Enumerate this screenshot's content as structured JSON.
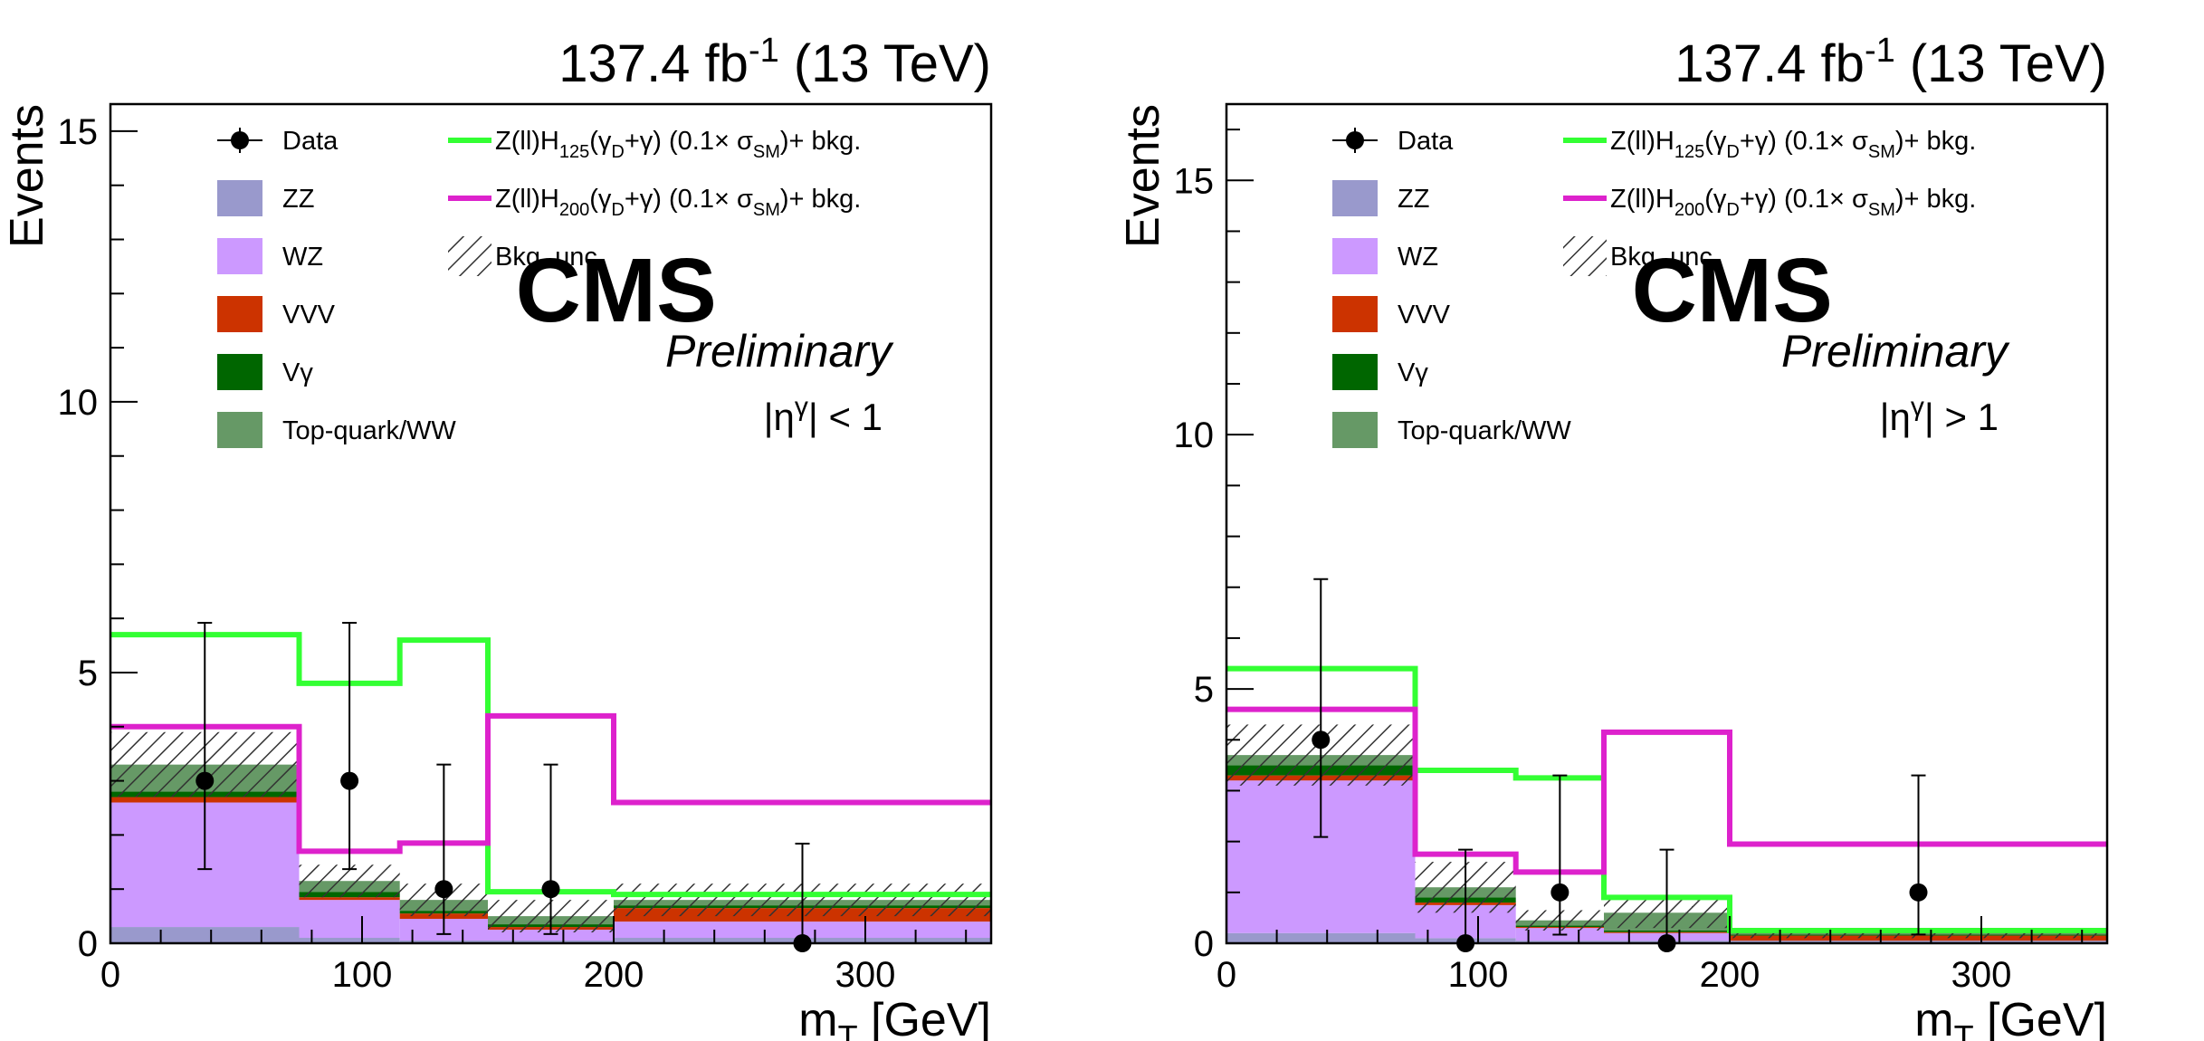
{
  "chart_data": [
    {
      "type": "bar",
      "stacked": true,
      "header_lumi": "137.4 fb",
      "header_lumi_exp": "-1",
      "header_energy": " (13 TeV)",
      "experiment": "CMS",
      "experiment_status": "Preliminary",
      "region_label_main": "|η",
      "region_label_sup": "γ",
      "region_label_tail": "| < 1",
      "xlabel_main": "m",
      "xlabel_sub": "T",
      "xlabel_unit": " [GeV]",
      "ylabel": "Events",
      "xlim": [
        0,
        350
      ],
      "ylim": [
        0,
        15.5
      ],
      "x_ticks": [
        0,
        100,
        200,
        300
      ],
      "y_ticks": [
        0,
        5,
        10,
        15
      ],
      "bin_edges": [
        0,
        75,
        115,
        150,
        200,
        350
      ],
      "stack": [
        {
          "name": "ZZ",
          "color": "#9999cc",
          "values": [
            0.3,
            0.1,
            0.05,
            0.05,
            0.1
          ]
        },
        {
          "name": "WZ",
          "color": "#cc99ff",
          "values": [
            2.3,
            0.7,
            0.4,
            0.2,
            0.3
          ]
        },
        {
          "name": "VVV",
          "color": "#cc3300",
          "values": [
            0.1,
            0.05,
            0.1,
            0.05,
            0.25
          ]
        },
        {
          "name": "Vγ",
          "color": "#006600",
          "values": [
            0.1,
            0.1,
            0.05,
            0.05,
            0.05
          ]
        },
        {
          "name": "Top-quark/WW",
          "color": "#669966",
          "values": [
            0.5,
            0.2,
            0.2,
            0.15,
            0.1
          ]
        }
      ],
      "bkg_unc": [
        0.6,
        0.3,
        0.3,
        0.3,
        0.3
      ],
      "signals": [
        {
          "name_main": "Z(ll)H",
          "name_sub": "125",
          "name_tail": "(γ",
          "name_sub2": "D",
          "name_tail2": "+γ) (0.1× σ",
          "name_sub3": "SM",
          "name_tail3": ")+ bkg.",
          "color": "#33ff33",
          "values": [
            5.7,
            4.8,
            5.6,
            0.95,
            0.9
          ]
        },
        {
          "name_main": "Z(ll)H",
          "name_sub": "200",
          "name_tail": "(γ",
          "name_sub2": "D",
          "name_tail2": "+γ) (0.1× σ",
          "name_sub3": "SM",
          "name_tail3": ")+ bkg.",
          "color": "#dd22cc",
          "values": [
            4.0,
            1.7,
            1.85,
            4.2,
            2.6
          ]
        }
      ],
      "data": {
        "label": "Data",
        "x": [
          37.5,
          95,
          132.5,
          175,
          275
        ],
        "y": [
          3,
          3,
          1,
          1,
          0
        ],
        "err_low": [
          1.63,
          1.63,
          0.83,
          0.83,
          0
        ],
        "err_high": [
          2.92,
          2.92,
          2.3,
          2.3,
          1.84
        ]
      },
      "legend_unc": "Bkg. unc."
    },
    {
      "type": "bar",
      "stacked": true,
      "header_lumi": "137.4 fb",
      "header_lumi_exp": "-1",
      "header_energy": " (13 TeV)",
      "experiment": "CMS",
      "experiment_status": "Preliminary",
      "region_label_main": "|η",
      "region_label_sup": "γ",
      "region_label_tail": "| > 1",
      "xlabel_main": "m",
      "xlabel_sub": "T",
      "xlabel_unit": " [GeV]",
      "ylabel": "Events",
      "xlim": [
        0,
        350
      ],
      "ylim": [
        0,
        16.5
      ],
      "x_ticks": [
        0,
        100,
        200,
        300
      ],
      "y_ticks": [
        0,
        5,
        10,
        15
      ],
      "bin_edges": [
        0,
        75,
        115,
        150,
        200,
        350
      ],
      "stack": [
        {
          "name": "ZZ",
          "color": "#9999cc",
          "values": [
            0.2,
            0.1,
            0.05,
            0.05,
            0.05
          ]
        },
        {
          "name": "WZ",
          "color": "#cc99ff",
          "values": [
            3.0,
            0.65,
            0.25,
            0.15,
            0.0
          ]
        },
        {
          "name": "VVV",
          "color": "#cc3300",
          "values": [
            0.1,
            0.05,
            0.02,
            0.02,
            0.1
          ]
        },
        {
          "name": "Vγ",
          "color": "#006600",
          "values": [
            0.2,
            0.1,
            0.03,
            0.03,
            0.02
          ]
        },
        {
          "name": "Top-quark/WW",
          "color": "#669966",
          "values": [
            0.2,
            0.2,
            0.1,
            0.35,
            0.03
          ]
        }
      ],
      "bkg_unc": [
        0.6,
        0.5,
        0.2,
        0.3,
        0.1
      ],
      "signals": [
        {
          "name_main": "Z(ll)H",
          "name_sub": "125",
          "name_tail": "(γ",
          "name_sub2": "D",
          "name_tail2": "+γ) (0.1× σ",
          "name_sub3": "SM",
          "name_tail3": ")+ bkg.",
          "color": "#33ff33",
          "values": [
            5.4,
            3.4,
            3.25,
            0.9,
            0.25
          ]
        },
        {
          "name_main": "Z(ll)H",
          "name_sub": "200",
          "name_tail": "(γ",
          "name_sub2": "D",
          "name_tail2": "+γ) (0.1× σ",
          "name_sub3": "SM",
          "name_tail3": ")+ bkg.",
          "color": "#dd22cc",
          "values": [
            4.6,
            1.75,
            1.4,
            4.15,
            1.95
          ]
        }
      ],
      "data": {
        "label": "Data",
        "x": [
          37.5,
          95,
          132.5,
          175,
          275
        ],
        "y": [
          4,
          0,
          1,
          0,
          1
        ],
        "err_low": [
          1.91,
          0,
          0.83,
          0,
          0.83
        ],
        "err_high": [
          3.16,
          1.84,
          2.3,
          1.84,
          2.3
        ]
      },
      "legend_unc": "Bkg. unc."
    }
  ]
}
